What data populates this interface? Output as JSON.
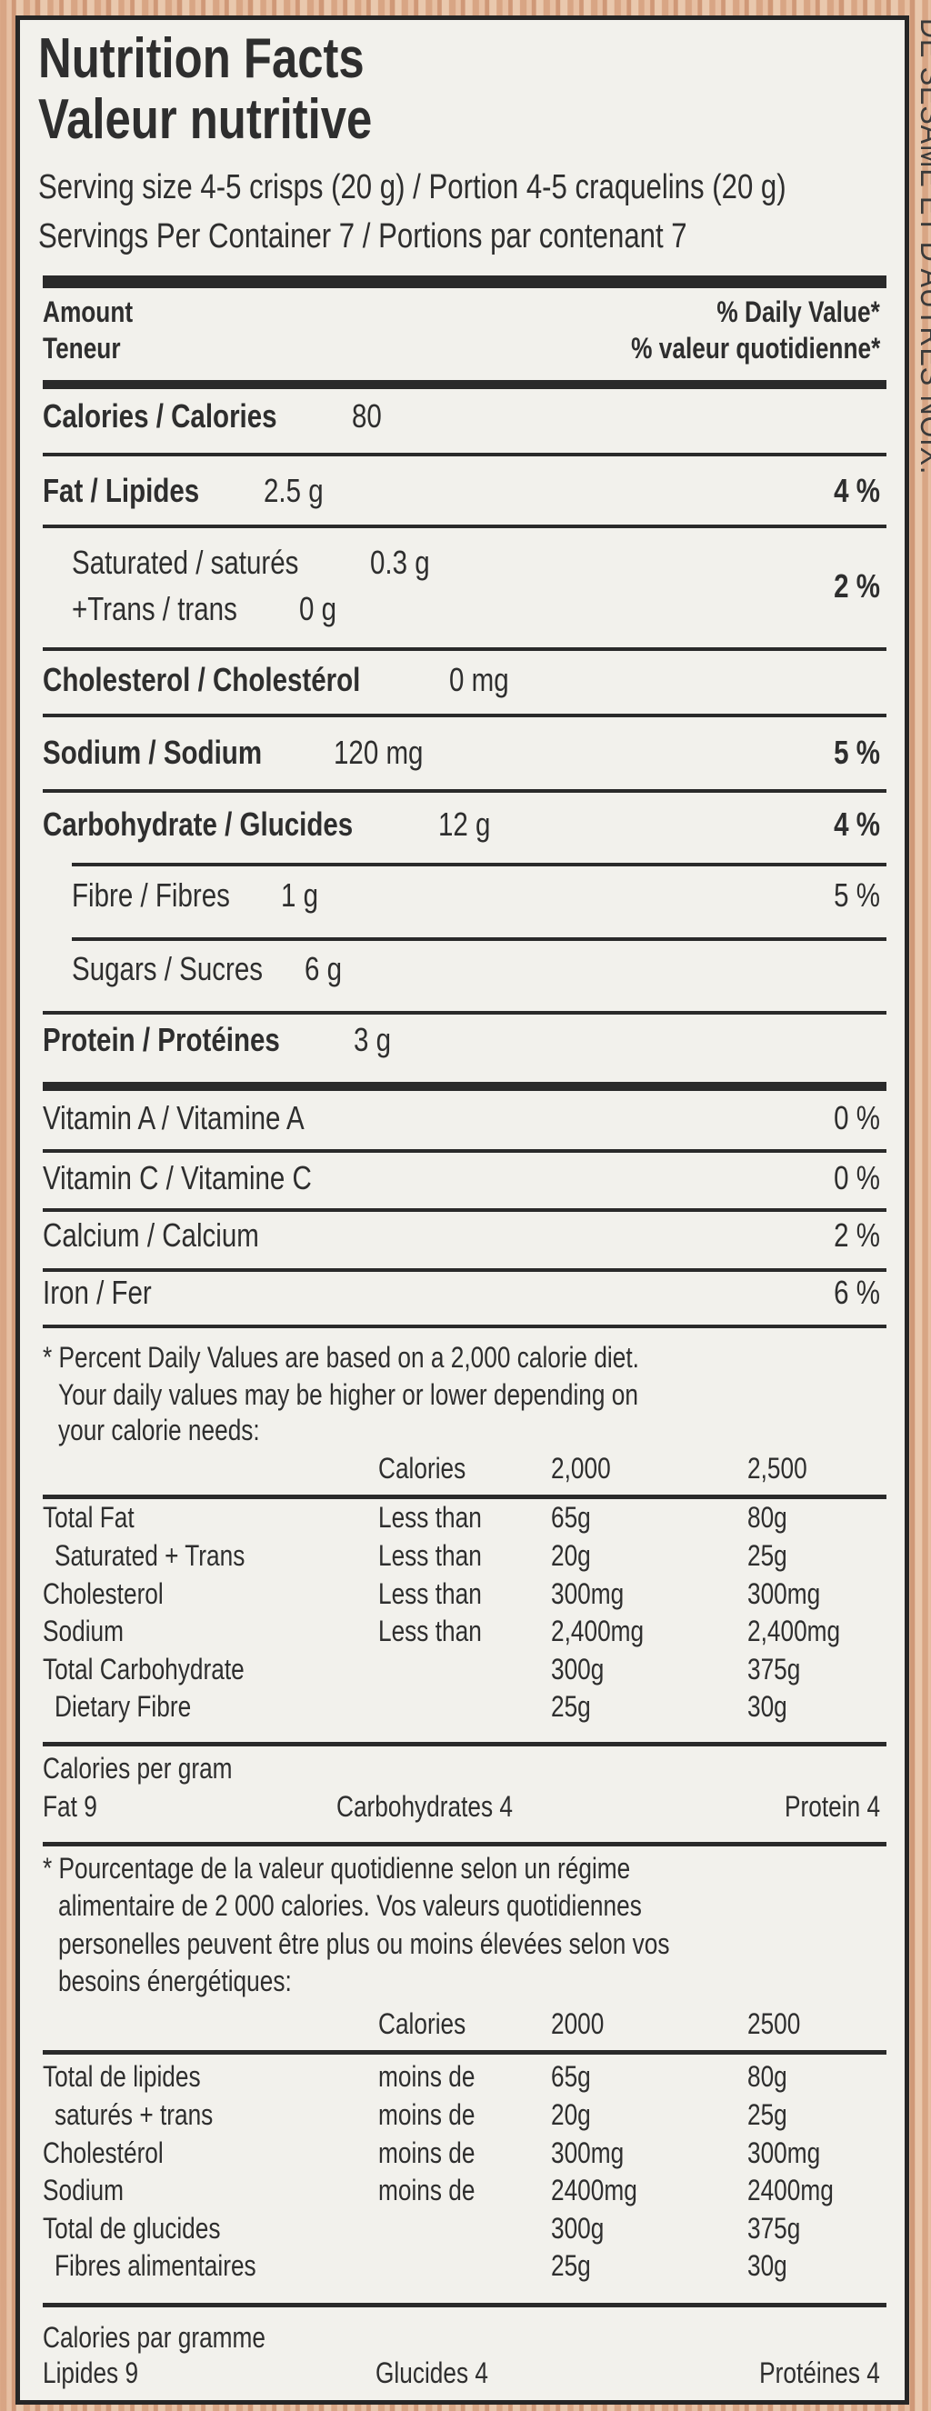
{
  "header": {
    "title_en": "Nutrition Facts",
    "title_fr": "Valeur nutritive",
    "serving_size": "Serving size 4-5 crisps (20 g) / Portion 4-5 craquelins (20 g)",
    "servings_per_container": "Servings Per Container  7  /  Portions par contenant  7",
    "amount_en": "Amount",
    "amount_fr": "Teneur",
    "dv_en": "% Daily Value*",
    "dv_fr": "% valeur quotidienne*"
  },
  "nutrients": [
    {
      "label": "Calories / Calories",
      "amount": "80",
      "dv": "",
      "bold": true,
      "indent": false
    },
    {
      "label": "Fat / Lipides",
      "amount": "2.5 g",
      "dv": "4 %",
      "bold": true,
      "indent": false
    },
    {
      "label": "Saturated / saturés",
      "amount": "0.3 g",
      "dv": "2 %",
      "bold": false,
      "indent": true,
      "sub_label": "+Trans / trans",
      "sub_amount": "0 g"
    },
    {
      "label": "Cholesterol / Cholestérol",
      "amount": "0 mg",
      "dv": "",
      "bold": true,
      "indent": false
    },
    {
      "label": "Sodium / Sodium",
      "amount": "120 mg",
      "dv": "5 %",
      "bold": true,
      "indent": false
    },
    {
      "label": "Carbohydrate /  Glucides",
      "amount": "12 g",
      "dv": "4 %",
      "bold": true,
      "indent": false
    },
    {
      "label": "Fibre / Fibres",
      "amount": "1 g",
      "dv": "5 %",
      "bold": false,
      "indent": true
    },
    {
      "label": "Sugars / Sucres",
      "amount": "6 g",
      "dv": "",
      "bold": false,
      "indent": true
    },
    {
      "label": "Protein / Protéines",
      "amount": "3 g",
      "dv": "",
      "bold": true,
      "indent": false
    }
  ],
  "vitamins": [
    {
      "label": "Vitamin A / Vitamine A",
      "dv": "0 %"
    },
    {
      "label": "Vitamin C / Vitamine C",
      "dv": "0 %"
    },
    {
      "label": "Calcium / Calcium",
      "dv": "2 %"
    },
    {
      "label": "Iron / Fer",
      "dv": "6 %"
    }
  ],
  "footnote_en": {
    "lines": [
      "* Percent Daily Values are based on a 2,000 calorie diet.",
      "Your daily values may be higher or lower depending on",
      "your calorie needs:"
    ],
    "header": [
      "Calories",
      "2,000",
      "2,500"
    ],
    "rows": [
      [
        "Total Fat",
        "Less than",
        "65g",
        "80g"
      ],
      [
        " Saturated + Trans",
        "Less than",
        "20g",
        "25g"
      ],
      [
        "Cholesterol",
        "Less than",
        "300mg",
        "300mg"
      ],
      [
        "Sodium",
        "Less than",
        "2,400mg",
        "2,400mg"
      ],
      [
        "Total Carbohydrate",
        "",
        "300g",
        "375g"
      ],
      [
        " Dietary Fibre",
        "",
        "25g",
        "30g"
      ]
    ],
    "cal_per_gram_title": "Calories per gram",
    "cal_per_gram": [
      "Fat  9",
      "Carbohydrates  4",
      "Protein  4"
    ]
  },
  "footnote_fr": {
    "lines": [
      "* Pourcentage de la valeur quotidienne selon un régime",
      "alimentaire de 2 000 calories. Vos valeurs quotidiennes",
      "personelles peuvent être plus ou moins élevées selon vos",
      "besoins énergétiques:"
    ],
    "header": [
      "Calories",
      "2000",
      "2500"
    ],
    "rows": [
      [
        "Total de lipides",
        "moins de",
        "65g",
        "80g"
      ],
      [
        " saturés + trans",
        "moins de",
        "20g",
        "25g"
      ],
      [
        "Cholestérol",
        "moins de",
        "300mg",
        "300mg"
      ],
      [
        "Sodium",
        "moins de",
        "2400mg",
        "2400mg"
      ],
      [
        "Total de glucides",
        "",
        "300g",
        "375g"
      ],
      [
        " Fibres alimentaires",
        "",
        "25g",
        "30g"
      ]
    ],
    "cal_per_gram_title": "Calories par gramme",
    "cal_per_gram": [
      "Lipides  9",
      "Glucides  4",
      "Protéines  4"
    ]
  },
  "side_text": "DE SÉSAME ET D'AUTRES NOIX."
}
